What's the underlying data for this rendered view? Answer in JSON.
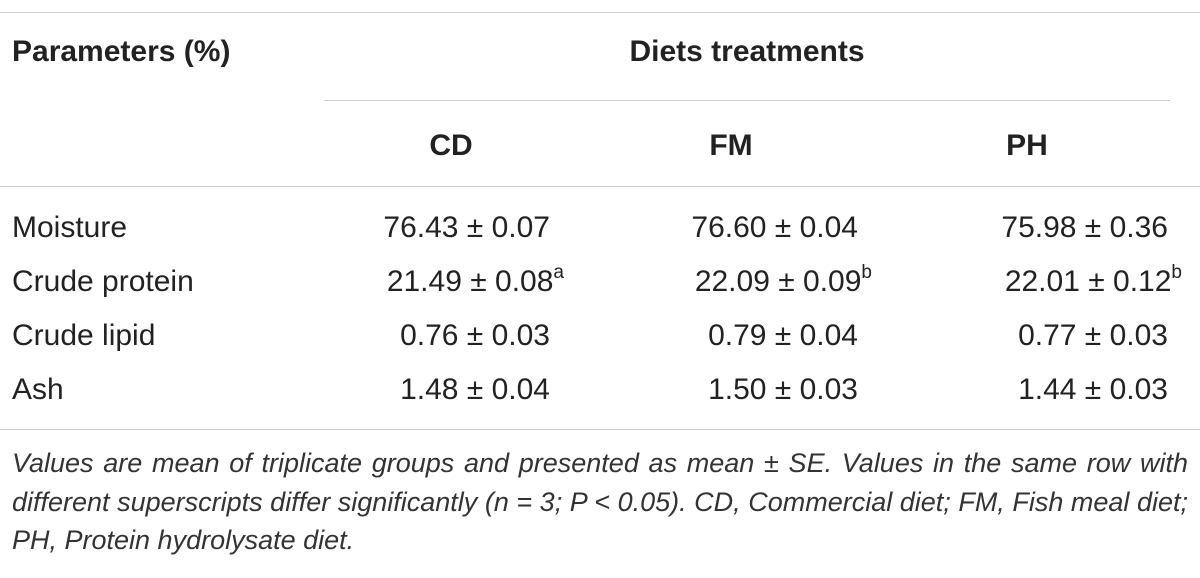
{
  "table": {
    "header": {
      "parameters": "Parameters (%)",
      "group": "Diets treatments",
      "columns": [
        "CD",
        "FM",
        "PH"
      ]
    },
    "rows": [
      {
        "label": "Moisture",
        "cd": "76.43 ± 0.07",
        "cd_sup": "",
        "fm": "76.60 ± 0.04",
        "fm_sup": "",
        "ph": "75.98 ± 0.36",
        "ph_sup": ""
      },
      {
        "label": "Crude protein",
        "cd": "21.49 ± 0.08",
        "cd_sup": "a",
        "fm": "22.09 ± 0.09",
        "fm_sup": "b",
        "ph": "22.01 ± 0.12",
        "ph_sup": "b"
      },
      {
        "label": "Crude lipid",
        "cd": "0.76 ± 0.03",
        "cd_sup": "",
        "fm": "0.79 ± 0.04",
        "fm_sup": "",
        "ph": "0.77 ± 0.03",
        "ph_sup": ""
      },
      {
        "label": "Ash",
        "cd": "1.48 ± 0.04",
        "cd_sup": "",
        "fm": "1.50 ± 0.03",
        "fm_sup": "",
        "ph": "1.44 ± 0.03",
        "ph_sup": ""
      }
    ],
    "footnote": "Values are mean of triplicate groups and presented as mean ± SE. Values in the same row with different superscripts differ significantly (n = 3; P < 0.05). CD, Commercial diet; FM, Fish meal diet; PH, Protein hydrolysate diet."
  }
}
